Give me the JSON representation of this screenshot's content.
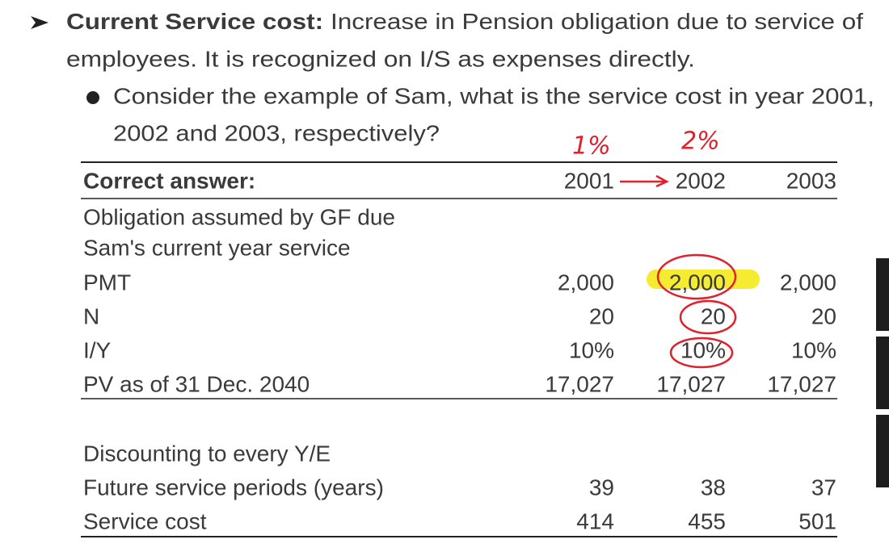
{
  "bullets": [
    {
      "lead": "Current Service cost:",
      "text_lines": [
        "Increase in Pension obligation due to service of",
        "employees.  It is recognized on I/S as expenses directly."
      ],
      "sub_bullets": [
        {
          "text_lines": [
            "Consider the example of Sam, what is the service cost in year 2001,",
            "2002 and 2003, respectively?"
          ]
        }
      ]
    }
  ],
  "annotations": [
    "1%",
    "2%"
  ],
  "table": {
    "header": [
      "Correct answer:",
      "2001",
      "2002",
      "2003"
    ],
    "rows": [
      [
        "Obligation assumed by GF due"
      ],
      [
        "Sam's current year service"
      ],
      [
        "PMT",
        "2,000",
        "2,000",
        "2,000"
      ],
      [
        "N",
        "20",
        "20",
        "20"
      ],
      [
        "I/Y",
        "10%",
        "10%",
        "10%"
      ],
      [
        "PV as of 31 Dec. 2040",
        "17,027",
        "17,027",
        "17,027"
      ],
      [
        "Discounting to every Y/E"
      ],
      [
        "Future service periods (years)",
        "39",
        "38",
        "37"
      ],
      [
        "Service cost",
        "414",
        "455",
        "501"
      ]
    ]
  }
}
